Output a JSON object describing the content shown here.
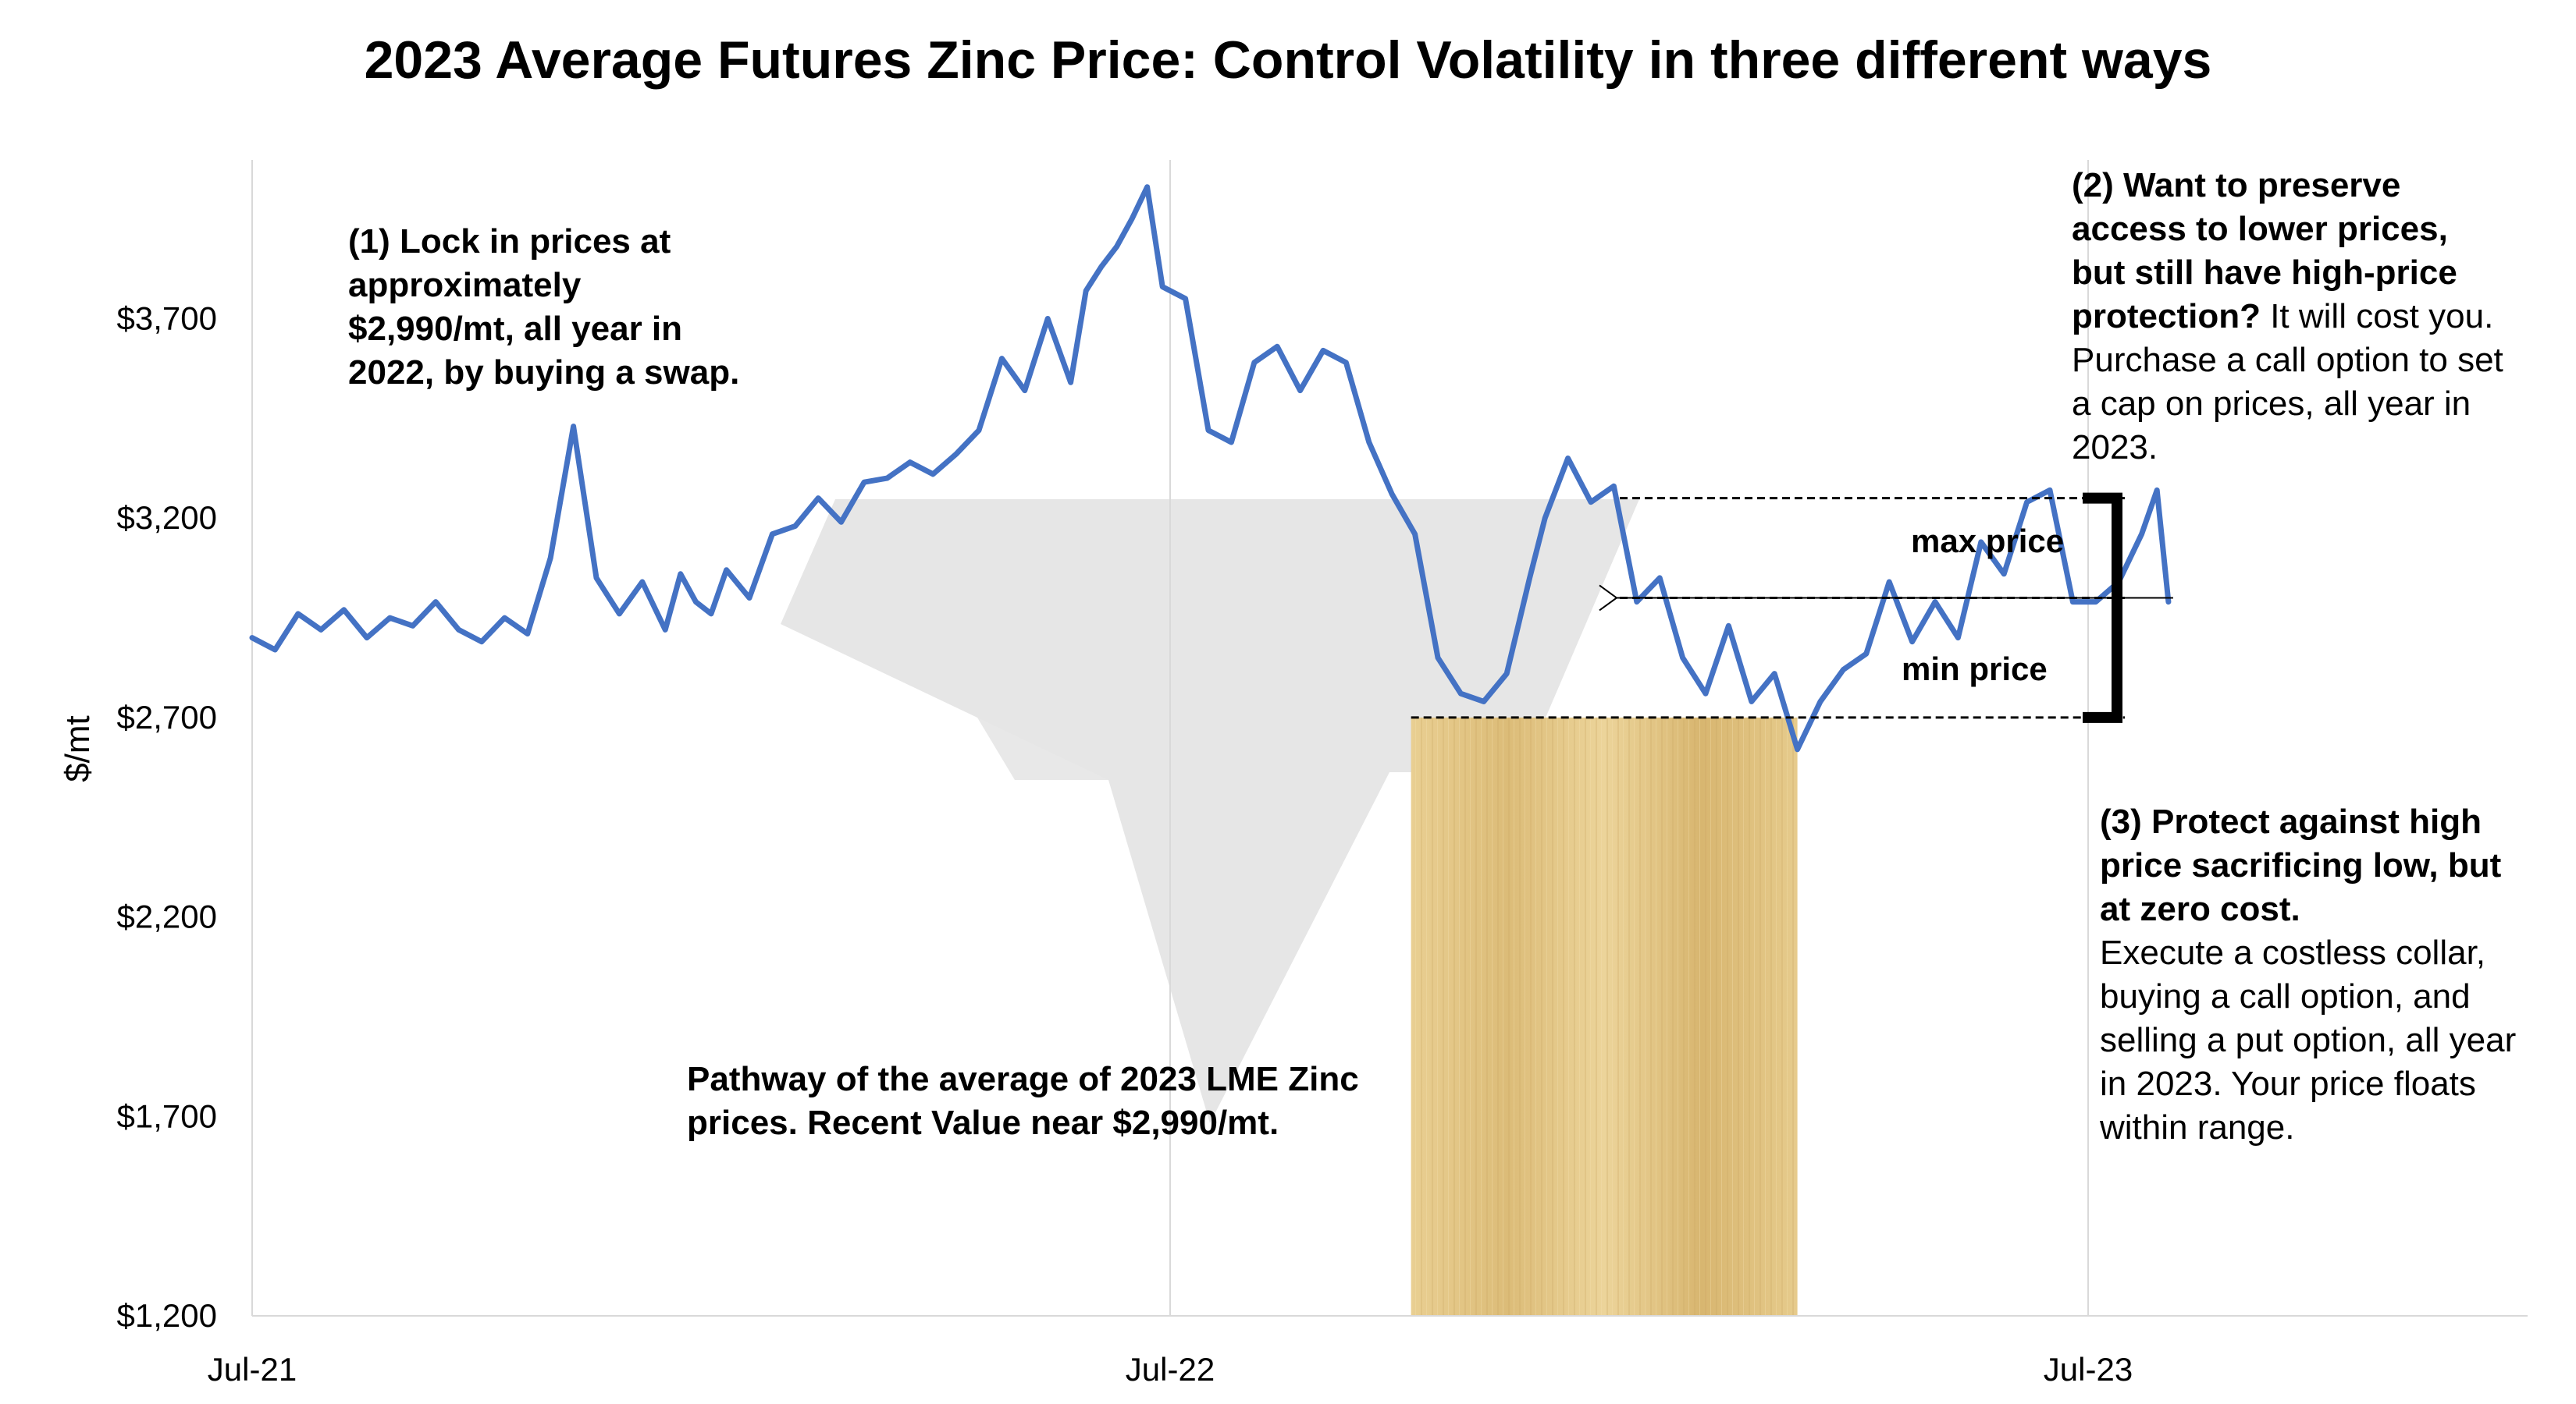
{
  "chart_data": {
    "type": "line",
    "title": "2023 Average Futures Zinc Price: Control Volatility in three different ways",
    "ylabel": "$/mt",
    "xlabel": "",
    "ylim": [
      1200,
      4100
    ],
    "yticks": [
      1200,
      1700,
      2200,
      2700,
      3200,
      3700
    ],
    "ytick_labels": [
      "$1,200",
      "$1,700",
      "$2,200",
      "$2,700",
      "$3,200",
      "$3,700"
    ],
    "xticks": [
      "Jul-21",
      "Jul-22",
      "Jul-23"
    ],
    "xlim_months": [
      0,
      29.7
    ],
    "grid": "vertical",
    "series": [
      {
        "color": "#4472C4",
        "x_months": [
          0,
          0.3,
          0.6,
          0.9,
          1.2,
          1.5,
          1.8,
          2.1,
          2.4,
          2.7,
          3.0,
          3.3,
          3.6,
          3.9,
          4.2,
          4.5,
          4.8,
          5.1,
          5.4,
          5.6,
          5.8,
          6.0,
          6.2,
          6.5,
          6.8,
          7.1,
          7.4,
          7.7,
          8.0,
          8.3,
          8.6,
          8.9,
          9.2,
          9.5,
          9.8,
          10.1,
          10.4,
          10.7,
          10.9,
          11.1,
          11.3,
          11.5,
          11.7,
          11.9,
          12.2,
          12.5,
          12.8,
          13.1,
          13.4,
          13.7,
          14.0,
          14.3,
          14.6,
          14.9,
          15.2,
          15.5,
          15.8,
          16.1,
          16.4,
          16.7,
          16.9,
          17.2,
          17.5,
          17.8,
          18.1,
          18.4,
          18.7,
          19.0,
          19.3,
          19.6,
          19.9,
          20.2,
          20.5,
          20.8,
          21.1,
          21.4,
          21.7,
          22.0,
          22.3,
          22.6,
          22.9,
          23.2,
          23.5,
          23.8,
          24.1,
          24.4,
          24.7,
          24.9,
          25.05
        ],
        "values": [
          2900,
          2870,
          2960,
          2920,
          2970,
          2900,
          2950,
          2930,
          2990,
          2920,
          2890,
          2950,
          2910,
          3100,
          3430,
          3050,
          2960,
          3040,
          2920,
          3060,
          2990,
          2960,
          3070,
          3000,
          3160,
          3180,
          3250,
          3190,
          3290,
          3300,
          3340,
          3310,
          3360,
          3420,
          3600,
          3520,
          3700,
          3540,
          3770,
          3830,
          3880,
          3950,
          4030,
          3780,
          3750,
          3420,
          3390,
          3590,
          3630,
          3520,
          3620,
          3590,
          3390,
          3260,
          3160,
          2850,
          2760,
          2740,
          2810,
          3050,
          3200,
          3350,
          3240,
          3280,
          2990,
          3050,
          2850,
          2760,
          2930,
          2740,
          2810,
          2620,
          2740,
          2820,
          2860,
          3040,
          2890,
          2990,
          2900,
          3140,
          3060,
          3240,
          3270,
          2990,
          2990,
          3040,
          3160,
          3270,
          2990
        ]
      }
    ],
    "level_lines": [
      3250,
      3000,
      2700
    ],
    "shaded_region": {
      "x_from_months": 15.15,
      "x_to_months": 20.2,
      "y_from": 1200,
      "y_to": 2700
    }
  },
  "annotations": {
    "a1": "(1) Lock in prices at approximately $2,990/mt, all year in 2022, by buying a swap.",
    "a2_bold": "(2) Want to preserve access to lower prices, but still have high-price protection?",
    "a2_rest": " It will cost you. Purchase a call option to set a cap on prices, all year in 2023.",
    "a3_bold": "(3) Protect against high price sacrificing low, but at zero cost.",
    "a3_rest": "Execute a costless collar, buying a call option, and selling a put option, all year in 2023. Your price floats within range.",
    "pathway": "Pathway of the average of 2023 LME Zinc prices.  Recent Value near $2,990/mt.",
    "max_label": "max price",
    "min_label": "min price"
  },
  "colors": {
    "line": "#4472C4",
    "grid": "#d9d9d9",
    "watermark": "#e6e6e6",
    "shade_light": "#e8cc8e",
    "shade_dark": "#d7b56c"
  }
}
